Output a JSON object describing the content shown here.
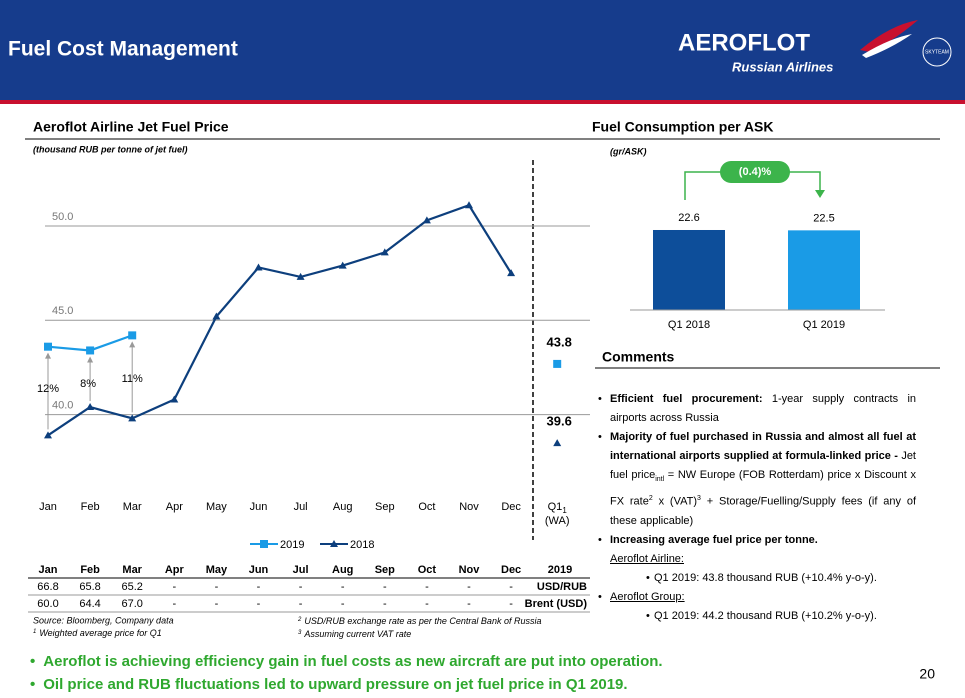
{
  "header": {
    "title": "Fuel Cost Management",
    "logo": "AEROFLOT",
    "logo_sub": "Russian Airlines",
    "badge": "SKYTEAM"
  },
  "chart_data": [
    {
      "type": "line",
      "title": "Aeroflot Airline Jet Fuel Price",
      "subtitle": "(thousand RUB per tonne of jet fuel)",
      "categories": [
        "Jan",
        "Feb",
        "Mar",
        "Apr",
        "May",
        "Jun",
        "Jul",
        "Aug",
        "Sep",
        "Oct",
        "Nov",
        "Dec"
      ],
      "series": [
        {
          "name": "2019",
          "color": "#1a9be6",
          "marker": "square",
          "values": [
            43.6,
            43.4,
            44.2,
            null,
            null,
            null,
            null,
            null,
            null,
            null,
            null,
            null
          ]
        },
        {
          "name": "2018",
          "color": "#0d3f7d",
          "marker": "triangle",
          "values": [
            38.9,
            40.4,
            39.8,
            40.8,
            45.2,
            47.8,
            47.3,
            47.9,
            48.6,
            50.3,
            51.1,
            47.5
          ]
        }
      ],
      "q1": {
        "label": "Q1",
        "sup": "1",
        "sublabel": "(WA)",
        "values": [
          43.8,
          39.6
        ]
      },
      "annotations": [
        "12%",
        "8%",
        "11%"
      ],
      "ylim": [
        36,
        53.5
      ],
      "yticks": [
        {
          "value": 40,
          "label": "40.0"
        },
        {
          "value": 45,
          "label": "45.0"
        },
        {
          "value": 50,
          "label": "50.0"
        }
      ],
      "grid": true,
      "legend": "bottom"
    },
    {
      "type": "bar",
      "title": "Fuel Consumption per ASK",
      "subtitle": "(gr/ASK)",
      "categories": [
        "Q1 2018",
        "Q1 2019"
      ],
      "values": [
        22.6,
        22.5
      ],
      "colors": [
        "#0d4e9a",
        "#1a9be6"
      ],
      "annotation": "(0.4)%",
      "ylim": [
        0,
        25
      ]
    }
  ],
  "table": {
    "header": [
      "Jan",
      "Feb",
      "Mar",
      "Apr",
      "May",
      "Jun",
      "Jul",
      "Aug",
      "Sep",
      "Oct",
      "Nov",
      "Dec",
      "2019"
    ],
    "rows": [
      [
        "66.8",
        "65.8",
        "65.2",
        "-",
        "-",
        "-",
        "-",
        "-",
        "-",
        "-",
        "-",
        "-",
        "USD/RUB"
      ],
      [
        "60.0",
        "64.4",
        "67.0",
        "-",
        "-",
        "-",
        "-",
        "-",
        "-",
        "-",
        "-",
        "-",
        "Brent (USD)"
      ]
    ]
  },
  "footnotes": {
    "source": "Source: Bloomberg, Company data",
    "notes": [
      {
        "sup": "1",
        "text": "Weighted average price for Q1"
      },
      {
        "sup": "2",
        "text": "USD/RUB exchange rate as per the Central Bank of Russia"
      },
      {
        "sup": "3",
        "text": "Assuming current VAT rate"
      }
    ]
  },
  "comments": {
    "title": "Comments",
    "items": [
      {
        "parts": [
          {
            "text": "Efficient fuel procurement:",
            "style": "b"
          },
          {
            "text": " 1-year supply contracts in airports across Russia"
          }
        ]
      },
      {
        "parts": [
          {
            "text": "Majority of fuel purchased in Russia and almost all fuel at international airports supplied at formula-linked price - ",
            "style": "b"
          },
          {
            "text": "Jet fuel price"
          },
          {
            "text": "intl",
            "style": "sub"
          },
          {
            "text": " = NW Europe (FOB Rotterdam) price x Discount x FX rate"
          },
          {
            "text": "2",
            "style": "sup"
          },
          {
            "text": " x (VAT)"
          },
          {
            "text": "3",
            "style": "sup"
          },
          {
            "text": " + Storage/Fuelling/Supply fees (if any of these applicable)"
          }
        ]
      },
      {
        "parts": [
          {
            "text": "Increasing average fuel price per tonne.",
            "style": "b"
          }
        ],
        "label": "Aeroflot Airline:",
        "sub": "Q1 2019: 43.8 thousand RUB (+10.4% y-o-y)."
      },
      {
        "parts": [],
        "label": "Aeroflot Group:",
        "sub": "Q1 2019: 44.2 thousand RUB (+10.2% y-o-y)."
      }
    ]
  },
  "bottom_bullets": [
    "Aeroflot is achieving efficiency gain in fuel costs as new aircraft are put into operation.",
    "Oil price and RUB fluctuations led to upward pressure on jet fuel price in Q1 2019."
  ],
  "page_number": "20"
}
